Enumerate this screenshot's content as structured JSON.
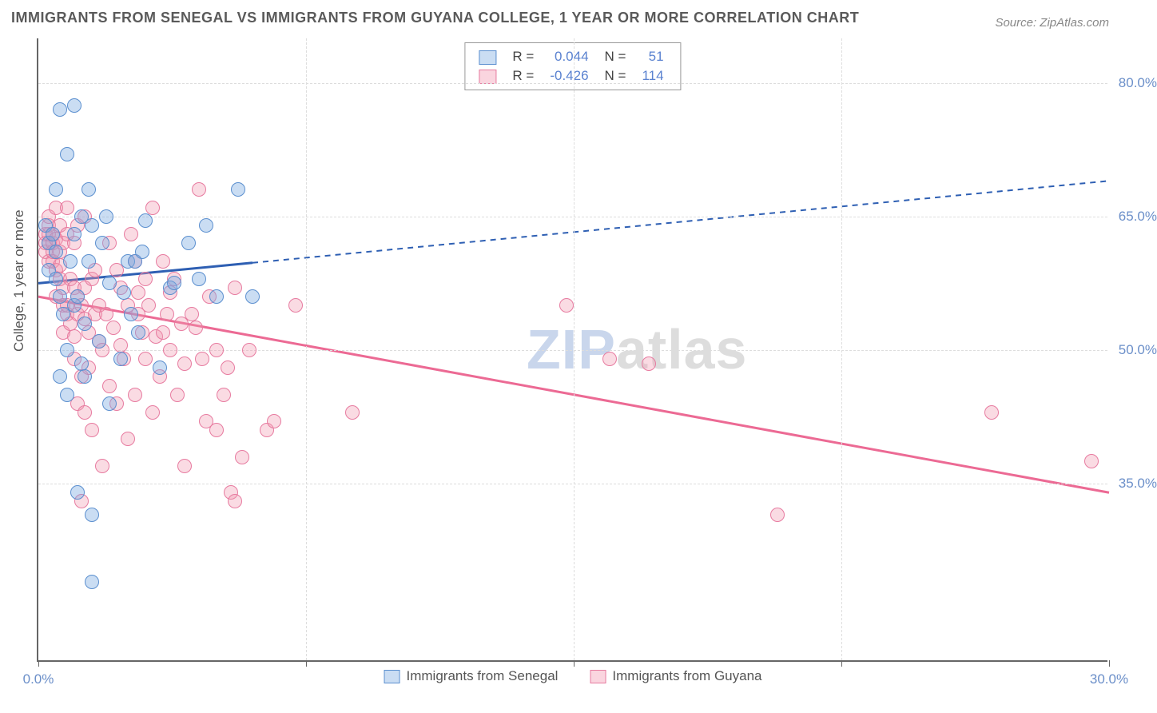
{
  "title": "IMMIGRANTS FROM SENEGAL VS IMMIGRANTS FROM GUYANA COLLEGE, 1 YEAR OR MORE CORRELATION CHART",
  "source": "Source: ZipAtlas.com",
  "watermark": {
    "prefix": "ZIP",
    "suffix": "atlas"
  },
  "y_axis_title": "College, 1 year or more",
  "chart": {
    "type": "scatter",
    "background_color": "#ffffff",
    "grid_color": "#dddddd",
    "xlim": [
      0,
      30
    ],
    "ylim": [
      15,
      85
    ],
    "x_ticks": [
      0,
      7.5,
      15,
      22.5,
      30
    ],
    "x_tick_labels": [
      "0.0%",
      "",
      "",
      "",
      "30.0%"
    ],
    "y_ticks": [
      35,
      50,
      65,
      80
    ],
    "y_tick_labels": [
      "35.0%",
      "50.0%",
      "65.0%",
      "80.0%"
    ],
    "marker_radius": 9,
    "series": [
      {
        "id": "senegal",
        "label": "Immigrants from Senegal",
        "color": "#7aa9e2",
        "border": "#5b8fcf",
        "R": 0.044,
        "N": 51,
        "trend": {
          "y_at_x0": 57.5,
          "y_at_x30": 69.0,
          "solid_until_x": 6.0
        },
        "points": [
          [
            0.2,
            64
          ],
          [
            0.3,
            62
          ],
          [
            0.3,
            59
          ],
          [
            0.4,
            63
          ],
          [
            0.5,
            61
          ],
          [
            0.5,
            68
          ],
          [
            0.5,
            58
          ],
          [
            0.6,
            56
          ],
          [
            0.6,
            47
          ],
          [
            0.6,
            77
          ],
          [
            0.7,
            54
          ],
          [
            0.8,
            72
          ],
          [
            0.8,
            50
          ],
          [
            0.8,
            45
          ],
          [
            0.9,
            60
          ],
          [
            1.0,
            63
          ],
          [
            1.0,
            77.5
          ],
          [
            1.0,
            55
          ],
          [
            1.1,
            56
          ],
          [
            1.1,
            34
          ],
          [
            1.2,
            65
          ],
          [
            1.2,
            48.5
          ],
          [
            1.3,
            53
          ],
          [
            1.3,
            47
          ],
          [
            1.4,
            60
          ],
          [
            1.4,
            68
          ],
          [
            1.5,
            64
          ],
          [
            1.5,
            31.5
          ],
          [
            1.5,
            24
          ],
          [
            1.7,
            51
          ],
          [
            1.8,
            62
          ],
          [
            1.9,
            65
          ],
          [
            2.0,
            57.5
          ],
          [
            2.0,
            44
          ],
          [
            2.3,
            49
          ],
          [
            2.4,
            56.5
          ],
          [
            2.5,
            60
          ],
          [
            2.6,
            54
          ],
          [
            2.7,
            60
          ],
          [
            2.8,
            52
          ],
          [
            2.9,
            61
          ],
          [
            3.0,
            64.5
          ],
          [
            3.4,
            48
          ],
          [
            3.7,
            57
          ],
          [
            3.8,
            57.5
          ],
          [
            4.2,
            62
          ],
          [
            4.5,
            58
          ],
          [
            4.7,
            64
          ],
          [
            5.0,
            56
          ],
          [
            5.6,
            68
          ],
          [
            6.0,
            56
          ]
        ]
      },
      {
        "id": "guyana",
        "label": "Immigrants from Guyana",
        "color": "#f297af",
        "border": "#e77ba0",
        "R": -0.426,
        "N": 114,
        "trend": {
          "y_at_x0": 56.0,
          "y_at_x30": 34.0,
          "solid_until_x": 30.0
        },
        "points": [
          [
            0.2,
            62
          ],
          [
            0.2,
            63
          ],
          [
            0.2,
            61
          ],
          [
            0.3,
            60
          ],
          [
            0.3,
            62
          ],
          [
            0.3,
            63
          ],
          [
            0.3,
            64
          ],
          [
            0.3,
            65
          ],
          [
            0.4,
            60
          ],
          [
            0.4,
            61
          ],
          [
            0.4,
            62
          ],
          [
            0.4,
            63
          ],
          [
            0.5,
            59
          ],
          [
            0.5,
            62.5
          ],
          [
            0.5,
            66
          ],
          [
            0.5,
            56
          ],
          [
            0.6,
            58
          ],
          [
            0.6,
            59.5
          ],
          [
            0.6,
            61
          ],
          [
            0.6,
            64
          ],
          [
            0.7,
            55
          ],
          [
            0.7,
            62
          ],
          [
            0.7,
            52
          ],
          [
            0.7,
            57
          ],
          [
            0.8,
            54
          ],
          [
            0.8,
            55
          ],
          [
            0.8,
            63
          ],
          [
            0.8,
            66
          ],
          [
            0.9,
            58
          ],
          [
            0.9,
            53
          ],
          [
            1.0,
            49
          ],
          [
            1.0,
            51.5
          ],
          [
            1.0,
            57
          ],
          [
            1.0,
            62
          ],
          [
            1.1,
            54
          ],
          [
            1.1,
            56
          ],
          [
            1.1,
            44
          ],
          [
            1.1,
            64
          ],
          [
            1.2,
            33
          ],
          [
            1.2,
            47
          ],
          [
            1.2,
            55
          ],
          [
            1.3,
            43
          ],
          [
            1.3,
            53.5
          ],
          [
            1.3,
            57
          ],
          [
            1.3,
            65
          ],
          [
            1.4,
            52
          ],
          [
            1.4,
            48
          ],
          [
            1.5,
            58
          ],
          [
            1.5,
            41
          ],
          [
            1.6,
            59
          ],
          [
            1.6,
            54
          ],
          [
            1.7,
            51
          ],
          [
            1.7,
            55
          ],
          [
            1.8,
            37
          ],
          [
            1.8,
            50
          ],
          [
            1.9,
            54
          ],
          [
            2.0,
            46
          ],
          [
            2.0,
            62
          ],
          [
            2.1,
            52.5
          ],
          [
            2.2,
            44
          ],
          [
            2.2,
            59
          ],
          [
            2.3,
            57
          ],
          [
            2.3,
            50.5
          ],
          [
            2.4,
            49
          ],
          [
            2.5,
            40
          ],
          [
            2.5,
            55
          ],
          [
            2.6,
            63
          ],
          [
            2.7,
            45
          ],
          [
            2.7,
            60
          ],
          [
            2.8,
            56.5
          ],
          [
            2.8,
            54
          ],
          [
            2.9,
            52
          ],
          [
            3.0,
            58
          ],
          [
            3.0,
            49
          ],
          [
            3.1,
            55
          ],
          [
            3.2,
            43
          ],
          [
            3.2,
            66
          ],
          [
            3.3,
            51.5
          ],
          [
            3.4,
            47
          ],
          [
            3.5,
            52
          ],
          [
            3.5,
            60
          ],
          [
            3.6,
            54
          ],
          [
            3.7,
            50
          ],
          [
            3.7,
            56.5
          ],
          [
            3.8,
            58
          ],
          [
            3.9,
            45
          ],
          [
            4.0,
            53
          ],
          [
            4.1,
            37
          ],
          [
            4.1,
            48.5
          ],
          [
            4.3,
            54
          ],
          [
            4.4,
            52.5
          ],
          [
            4.5,
            68
          ],
          [
            4.6,
            49
          ],
          [
            4.7,
            42
          ],
          [
            4.8,
            56
          ],
          [
            5.0,
            50
          ],
          [
            5.0,
            41
          ],
          [
            5.2,
            45
          ],
          [
            5.3,
            48
          ],
          [
            5.4,
            34
          ],
          [
            5.5,
            33
          ],
          [
            5.5,
            57
          ],
          [
            5.7,
            38
          ],
          [
            5.9,
            50
          ],
          [
            6.4,
            41
          ],
          [
            6.6,
            42
          ],
          [
            7.2,
            55
          ],
          [
            8.8,
            43
          ],
          [
            14.8,
            55
          ],
          [
            16.0,
            49
          ],
          [
            17.1,
            48.5
          ],
          [
            20.7,
            31.5
          ],
          [
            26.7,
            43
          ],
          [
            29.5,
            37.5
          ]
        ]
      }
    ]
  },
  "legend_top_cols": [
    "R =",
    "N ="
  ],
  "title_fontsize": 18,
  "label_fontsize": 17,
  "axis_color": "#666666",
  "text_color": "#555555",
  "value_color": "#5a82d0"
}
